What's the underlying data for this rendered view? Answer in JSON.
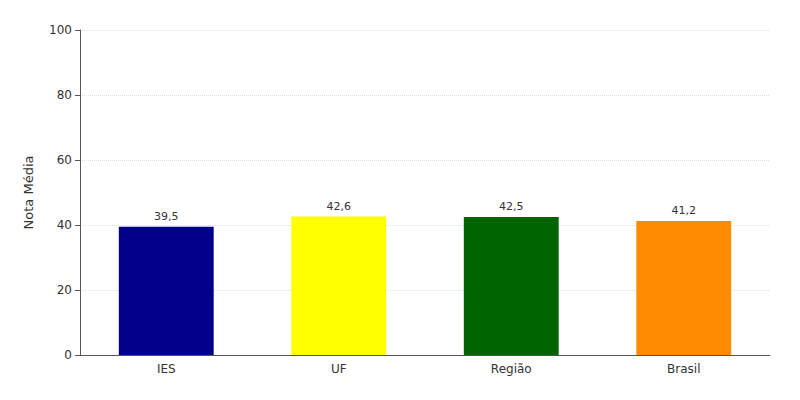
{
  "chart_data": {
    "type": "bar",
    "categories": [
      "IES",
      "UF",
      "Região",
      "Brasil"
    ],
    "values": [
      39.5,
      42.6,
      42.5,
      41.2
    ],
    "value_labels": [
      "39,5",
      "42,6",
      "42,5",
      "41,2"
    ],
    "colors": [
      "#00008B",
      "#FFFF00",
      "#006400",
      "#FF8C00"
    ],
    "ylabel": "Nota Média",
    "ylim": [
      0,
      100
    ],
    "yticks": [
      0,
      20,
      40,
      60,
      80,
      100
    ],
    "grid": true,
    "data_labels": true
  }
}
